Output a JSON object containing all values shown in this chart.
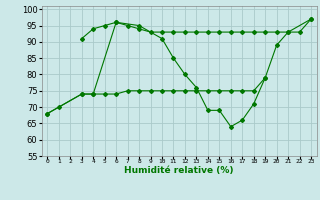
{
  "x": [
    0,
    1,
    2,
    3,
    4,
    5,
    6,
    7,
    8,
    9,
    10,
    11,
    12,
    13,
    14,
    15,
    16,
    17,
    18,
    19,
    20,
    21,
    22,
    23
  ],
  "line1": [
    null,
    null,
    null,
    91,
    94,
    95,
    96,
    95,
    94,
    93,
    93,
    93,
    93,
    93,
    93,
    93,
    93,
    93,
    93,
    93,
    93,
    93,
    93,
    97
  ],
  "line2": [
    68,
    70,
    null,
    74,
    74,
    null,
    96,
    null,
    95,
    null,
    91,
    85,
    80,
    76,
    69,
    69,
    64,
    66,
    71,
    79,
    89,
    93,
    null,
    97
  ],
  "line3": [
    68,
    null,
    null,
    74,
    74,
    74,
    74,
    75,
    75,
    75,
    75,
    75,
    75,
    75,
    75,
    75,
    75,
    75,
    75,
    79,
    null,
    null,
    null,
    null
  ],
  "xlabel": "Humidité relative (%)",
  "bg_color": "#cce8e8",
  "grid_color": "#aacaca",
  "line_color": "#007700",
  "ylim": [
    55,
    101
  ],
  "yticks": [
    55,
    60,
    65,
    70,
    75,
    80,
    85,
    90,
    95,
    100
  ],
  "xtick_labels": [
    "0",
    "1",
    "2",
    "3",
    "4",
    "5",
    "6",
    "7",
    "8",
    "9",
    "10",
    "11",
    "12",
    "13",
    "14",
    "15",
    "16",
    "17",
    "18",
    "19",
    "20",
    "21",
    "22",
    "23"
  ]
}
